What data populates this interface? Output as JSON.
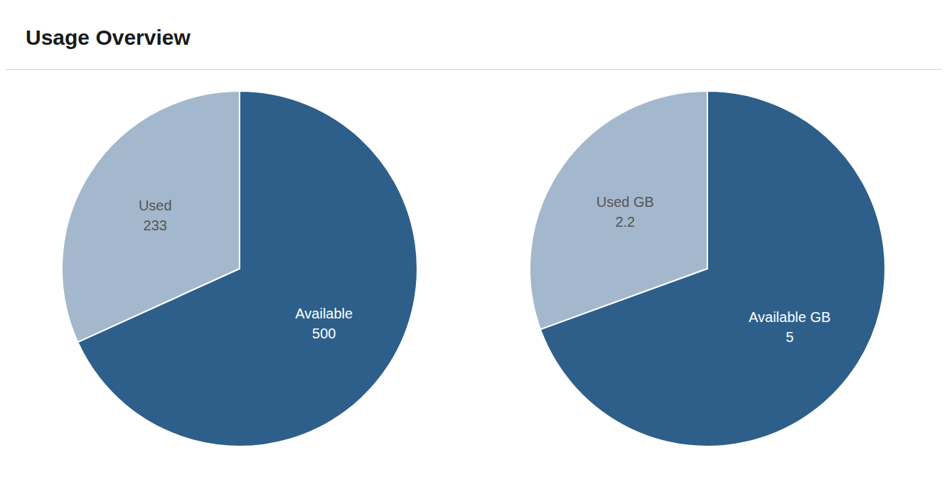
{
  "title": "Usage Overview",
  "chart_data": [
    {
      "type": "pie",
      "categories": [
        "Used",
        "Available"
      ],
      "values": [
        233,
        500
      ],
      "colors": [
        "#a4b8cd",
        "#2d5f8a"
      ],
      "data_labels": true
    },
    {
      "type": "pie",
      "categories": [
        "Used GB",
        "Available GB"
      ],
      "values": [
        2.2,
        5
      ],
      "colors": [
        "#a4b8cd",
        "#2d5f8a"
      ],
      "data_labels": true
    }
  ]
}
